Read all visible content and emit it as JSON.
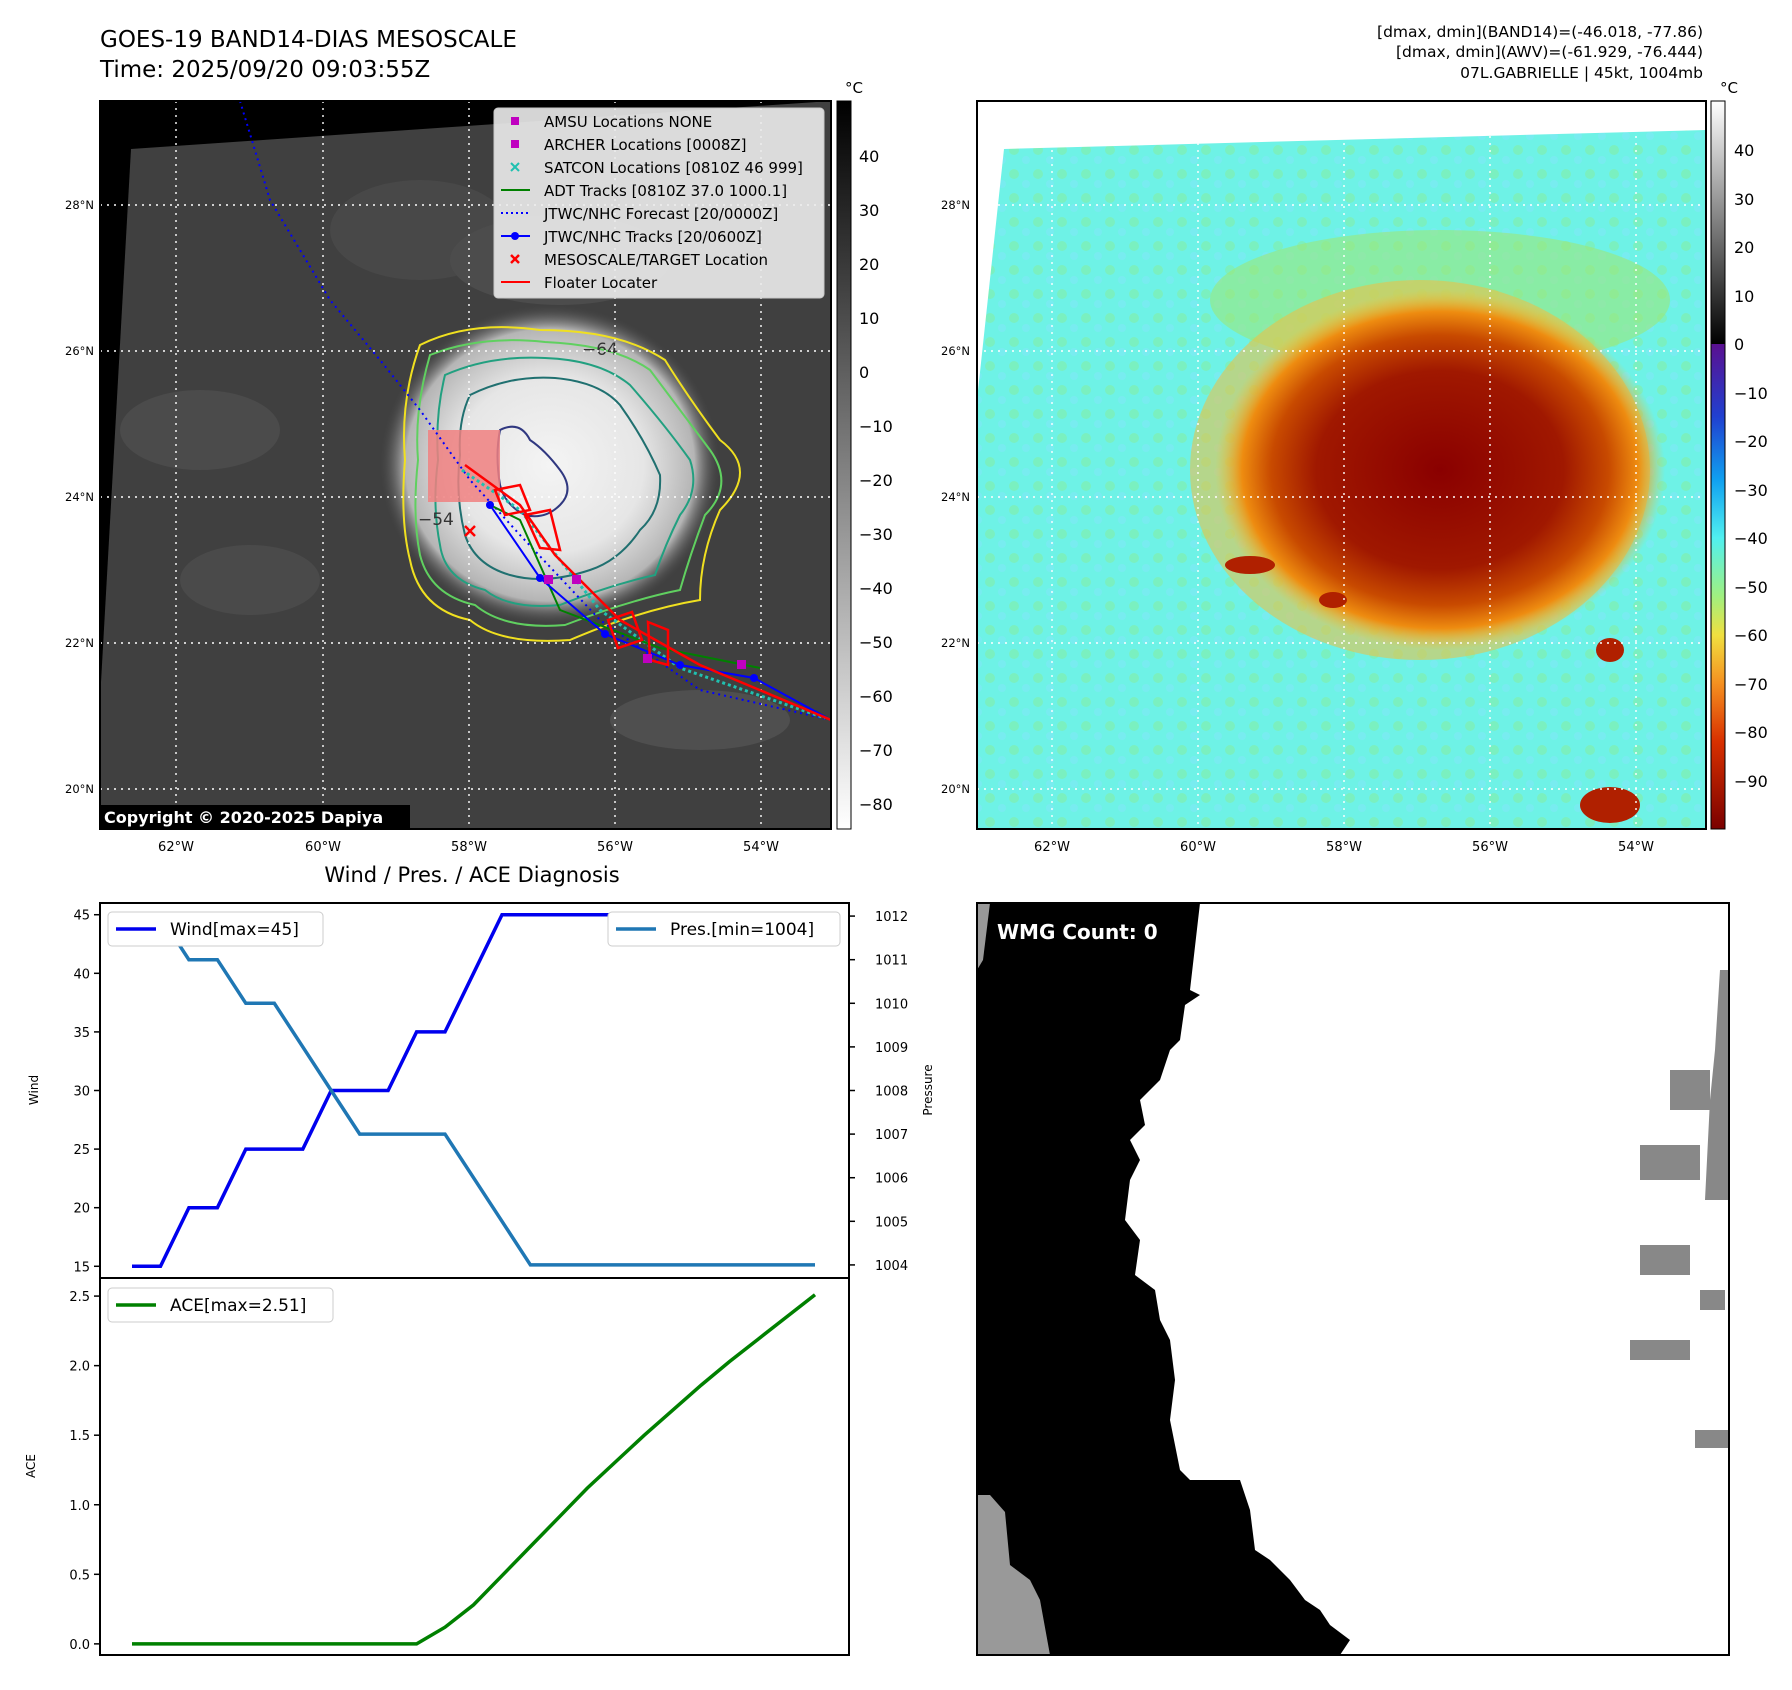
{
  "header": {
    "title": "GOES-19 BAND14-DIAS MESOSCALE",
    "time": "Time: 2025/09/20 09:03:55Z",
    "stats_line1": "[dmax, dmin](BAND14)=(-46.018, -77.86)",
    "stats_line2": "[dmax, dmin](AWV)=(-61.929, -76.444)",
    "stats_line3": "07L.GABRIELLE | 45kt, 1004mb"
  },
  "map_axes": {
    "lon_ticks": [
      "62°W",
      "60°W",
      "58°W",
      "56°W",
      "54°W"
    ],
    "lat_ticks": [
      "28°N",
      "26°N",
      "24°N",
      "22°N",
      "20°N"
    ]
  },
  "ir_map": {
    "copyright": "Copyright © 2020-2025 Dapiya",
    "contour_labels": [
      "−64",
      "−54"
    ],
    "colorbar": {
      "unit": "°C",
      "ticks": [
        "40",
        "30",
        "20",
        "10",
        "0",
        "−10",
        "−20",
        "−30",
        "−40",
        "−50",
        "−60",
        "−70",
        "−80"
      ]
    },
    "legend": [
      {
        "label": "AMSU Locations NONE",
        "marker": "square",
        "color": "#c000c0"
      },
      {
        "label": "ARCHER Locations [0008Z]",
        "marker": "square",
        "color": "#c000c0"
      },
      {
        "label": "SATCON Locations [0810Z 46 999]",
        "marker": "x",
        "color": "#20c0b0"
      },
      {
        "label": "ADT Tracks [0810Z 37.0 1000.1]",
        "marker": "line",
        "color": "#008000"
      },
      {
        "label": "JTWC/NHC Forecast [20/0000Z]",
        "marker": "dotted",
        "color": "#0000ff"
      },
      {
        "label": "JTWC/NHC Tracks [20/0600Z]",
        "marker": "line-dot",
        "color": "#0000ff"
      },
      {
        "label": "MESOSCALE/TARGET Location",
        "marker": "x",
        "color": "#ff0000"
      },
      {
        "label": "Floater Locater",
        "marker": "line",
        "color": "#ff0000"
      }
    ]
  },
  "awv_map": {
    "colorbar": {
      "unit": "°C",
      "ticks": [
        "40",
        "30",
        "20",
        "10",
        "0",
        "−10",
        "−20",
        "−30",
        "−40",
        "−50",
        "−60",
        "−70",
        "−80",
        "−90"
      ]
    }
  },
  "diagnosis": {
    "title": "Wind / Pres. / ACE Diagnosis"
  },
  "wmg": {
    "label": "WMG Count: 0"
  },
  "chart_data": [
    {
      "type": "line",
      "title": "Wind / Pres. / ACE Diagnosis",
      "ylabel": "Wind",
      "ylabel2": "Pressure",
      "ylim": [
        14,
        46
      ],
      "ylim2": [
        1003.7,
        1012.3
      ],
      "yticks": [
        "15",
        "20",
        "25",
        "30",
        "35",
        "40",
        "45"
      ],
      "yticks2": [
        "1004",
        "1005",
        "1006",
        "1007",
        "1008",
        "1009",
        "1010",
        "1011",
        "1012"
      ],
      "x": [
        0,
        1,
        2,
        3,
        4,
        5,
        6,
        7,
        8,
        9,
        10,
        11,
        12,
        13,
        14,
        15,
        16,
        17,
        18,
        19,
        20,
        21,
        22,
        23,
        24
      ],
      "series": [
        {
          "name": "Wind[max=45]",
          "axis": "left",
          "color": "#0000ee",
          "values": [
            15,
            15,
            20,
            20,
            25,
            25,
            25,
            30,
            30,
            30,
            35,
            35,
            40,
            45,
            45,
            45,
            45,
            45,
            45,
            45,
            45,
            45,
            45,
            45,
            45
          ]
        },
        {
          "name": "Pres.[min=1004]",
          "axis": "right",
          "color": "#1f77b4",
          "values": [
            1012,
            1012,
            1011,
            1011,
            1010,
            1010,
            1009,
            1008,
            1007,
            1007,
            1007,
            1007,
            1006,
            1005,
            1004,
            1004,
            1004,
            1004,
            1004,
            1004,
            1004,
            1004,
            1004,
            1004,
            1004
          ]
        }
      ]
    },
    {
      "type": "line",
      "ylabel": "ACE",
      "ylim": [
        -0.08,
        2.63
      ],
      "yticks": [
        "0.0",
        "0.5",
        "1.0",
        "1.5",
        "2.0",
        "2.5"
      ],
      "x": [
        0,
        1,
        2,
        3,
        4,
        5,
        6,
        7,
        8,
        9,
        10,
        11,
        12,
        13,
        14,
        15,
        16,
        17,
        18,
        19,
        20,
        21,
        22,
        23,
        24
      ],
      "series": [
        {
          "name": "ACE[max=2.51]",
          "color": "#008000",
          "values": [
            0,
            0,
            0,
            0,
            0,
            0,
            0,
            0,
            0,
            0,
            0,
            0.12,
            0.28,
            0.49,
            0.7,
            0.91,
            1.12,
            1.31,
            1.5,
            1.68,
            1.86,
            2.03,
            2.19,
            2.35,
            2.51
          ]
        }
      ]
    }
  ]
}
